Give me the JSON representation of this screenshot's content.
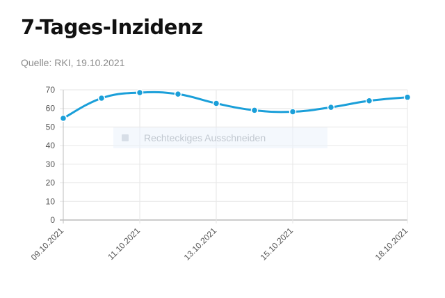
{
  "header": {
    "title": "7-Tages-Inzidenz",
    "source": "Quelle: RKI, 19.10.2021"
  },
  "overlay": {
    "label": "Rechteckiges Ausschneiden",
    "icon": "crop-icon"
  },
  "chart_data": {
    "type": "line",
    "title": "7-Tages-Inzidenz",
    "xlabel": "",
    "ylabel": "",
    "ylim": [
      0,
      70
    ],
    "y_ticks": [
      0,
      10,
      20,
      30,
      40,
      50,
      60,
      70
    ],
    "x_tick_labels": [
      "09.10.2021",
      "11.10.2021",
      "13.10.2021",
      "15.10.2021",
      "18.10.2021"
    ],
    "x": [
      "09.10.2021",
      "10.10.2021",
      "11.10.2021",
      "12.10.2021",
      "13.10.2021",
      "14.10.2021",
      "15.10.2021",
      "16.10.2021",
      "17.10.2021",
      "18.10.2021"
    ],
    "values": [
      54.7,
      65.5,
      68.5,
      67.7,
      62.7,
      59.0,
      58.2,
      60.6,
      64.1,
      66.0
    ],
    "grid": true,
    "legend": "none",
    "line_color": "#1a9fd9"
  }
}
